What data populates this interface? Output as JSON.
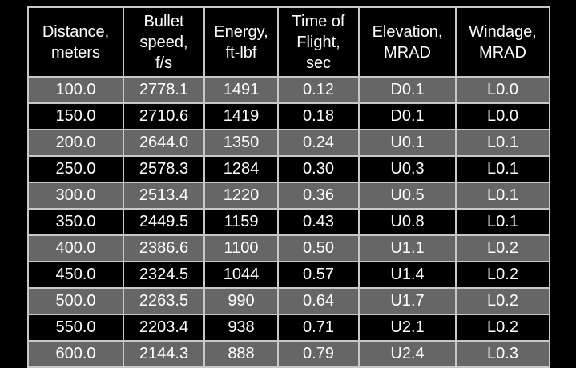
{
  "table": {
    "header": [
      "Distance,\nmeters",
      "Bullet\nspeed,\nf/s",
      "Energy,\nft-lbf",
      "Time of\nFlight,\nsec",
      "Elevation,\nMRAD",
      "Windage,\nMRAD"
    ],
    "rows": [
      [
        "100.0",
        "2778.1",
        "1491",
        "0.12",
        "D0.1",
        "L0.0"
      ],
      [
        "150.0",
        "2710.6",
        "1419",
        "0.18",
        "D0.1",
        "L0.0"
      ],
      [
        "200.0",
        "2644.0",
        "1350",
        "0.24",
        "U0.1",
        "L0.1"
      ],
      [
        "250.0",
        "2578.3",
        "1284",
        "0.30",
        "U0.3",
        "L0.1"
      ],
      [
        "300.0",
        "2513.4",
        "1220",
        "0.36",
        "U0.5",
        "L0.1"
      ],
      [
        "350.0",
        "2449.5",
        "1159",
        "0.43",
        "U0.8",
        "L0.1"
      ],
      [
        "400.0",
        "2386.6",
        "1100",
        "0.50",
        "U1.1",
        "L0.2"
      ],
      [
        "450.0",
        "2324.5",
        "1044",
        "0.57",
        "U1.4",
        "L0.2"
      ],
      [
        "500.0",
        "2263.5",
        "990",
        "0.64",
        "U1.7",
        "L0.2"
      ],
      [
        "550.0",
        "2203.4",
        "938",
        "0.71",
        "U2.1",
        "L0.2"
      ],
      [
        "600.0",
        "2144.3",
        "888",
        "0.79",
        "U2.4",
        "L0.3"
      ]
    ]
  }
}
